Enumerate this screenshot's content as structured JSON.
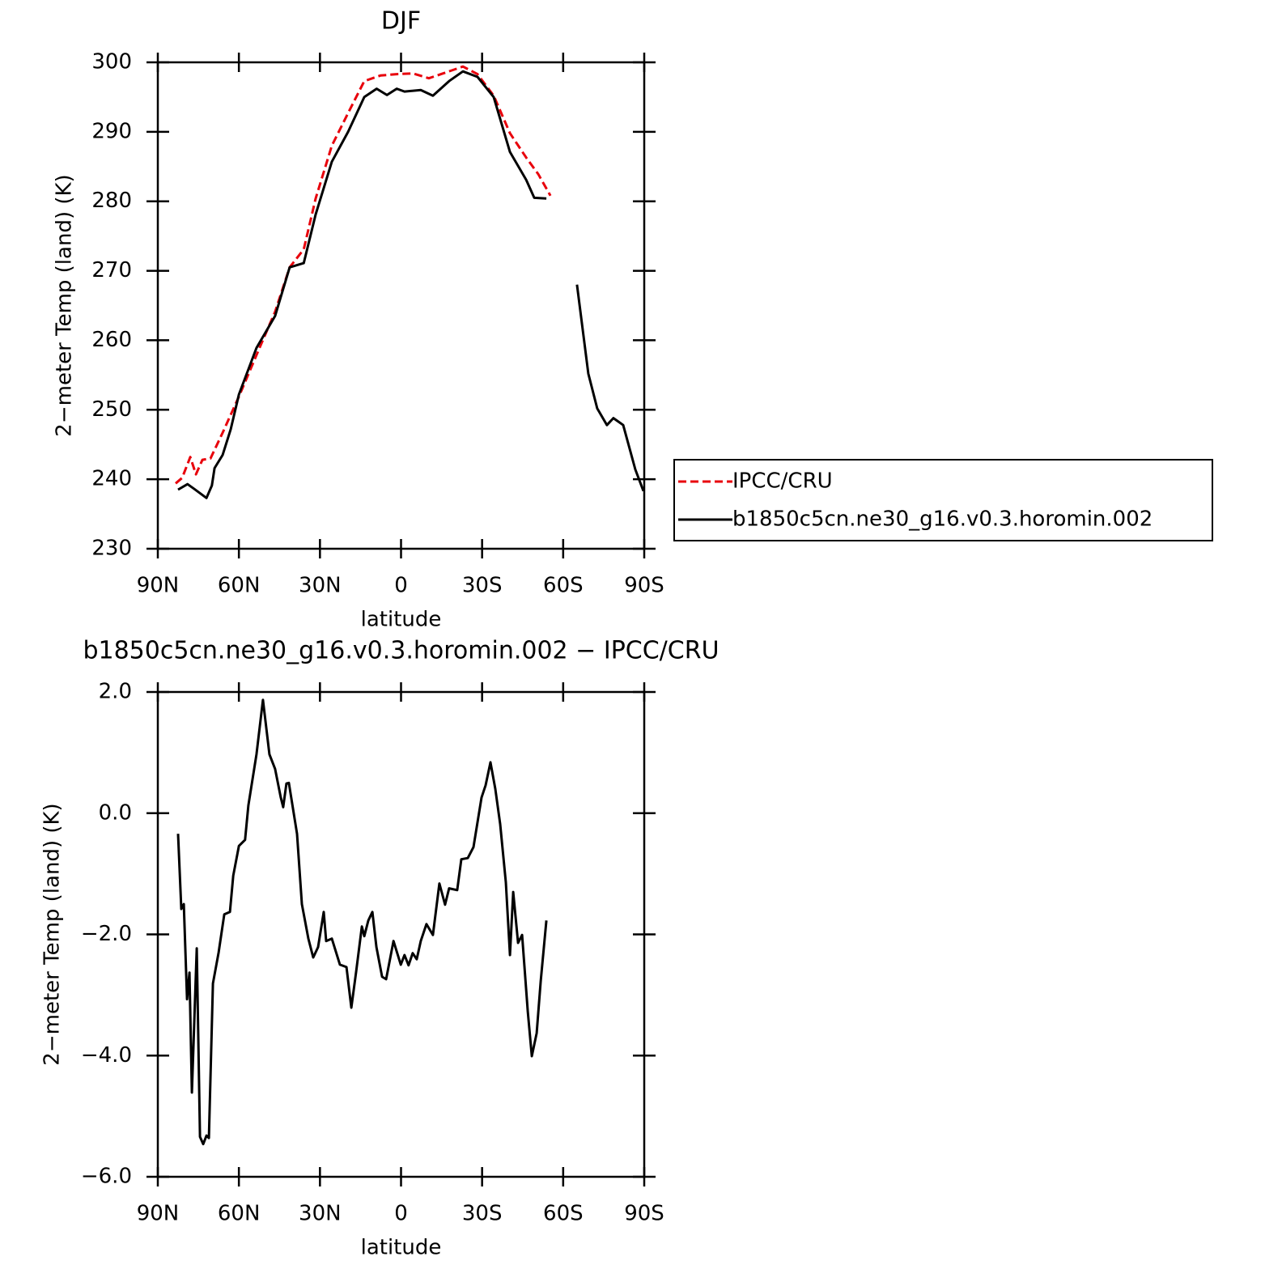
{
  "chart_data": [
    {
      "type": "line",
      "title": "DJF",
      "xlabel": "latitude",
      "ylabel": "2−meter Temp (land) (K)",
      "xlim": [
        90,
        -90
      ],
      "xticks": [
        {
          "value": 90,
          "label": "90N"
        },
        {
          "value": 60,
          "label": "60N"
        },
        {
          "value": 30,
          "label": "30N"
        },
        0,
        {
          "value": -30,
          "label": "30S"
        },
        {
          "value": -60,
          "label": "60S"
        },
        {
          "value": -90,
          "label": "90S"
        }
      ],
      "ylim": [
        230,
        300
      ],
      "yticks": [
        230,
        240,
        250,
        260,
        270,
        280,
        290,
        300
      ],
      "legend": "right",
      "series": [
        {
          "name": "IPCC/CRU",
          "color": "#e8000b",
          "dash": true,
          "x": [
            83.4,
            81,
            78,
            75.9,
            73.5,
            70.5,
            66,
            60,
            52.6,
            46.6,
            41.2,
            36,
            31.6,
            25.6,
            19.6,
            13.6,
            7.6,
            1.6,
            -4.3,
            -10.3,
            -14.8,
            -22.9,
            -28.3,
            -34.3,
            -40.3,
            -46.3,
            -50.8,
            -55.3
          ],
          "values": [
            239.4,
            240.2,
            243.2,
            240.7,
            242.8,
            243,
            246.7,
            251.9,
            258.7,
            264.1,
            270.5,
            273.1,
            280.4,
            288,
            292.7,
            297.3,
            298.1,
            298.3,
            298.4,
            297.7,
            298.3,
            299.4,
            298.3,
            295.2,
            289.8,
            286.3,
            283.9,
            280.8
          ]
        },
        {
          "name": "b1850c5cn.ne30_g16.v0.3.horomin.002",
          "color": "#000000",
          "dash": false,
          "x": [
            82.5,
            79,
            76.5,
            72,
            70,
            69,
            66,
            63,
            60,
            53.5,
            46.6,
            41.2,
            36,
            31.6,
            25.6,
            19.6,
            13.6,
            9,
            5.2,
            1.6,
            -1.3,
            -7.3,
            -11.8,
            -17.8,
            -22.9,
            -28.3,
            -34.3,
            -40.3,
            -46.3,
            -49.3,
            -53.8,
            -60,
            -65.1,
            -69.3,
            -72.6,
            -76.2,
            -78.6,
            -82.2,
            -86.7,
            -89.7
          ],
          "values": [
            238.5,
            239.3,
            238.6,
            237.3,
            239.1,
            241.6,
            243.5,
            247.2,
            252.2,
            258.9,
            263.5,
            270.5,
            271.1,
            278.1,
            285.7,
            290,
            295,
            296.2,
            295.3,
            296.2,
            295.8,
            296,
            295.2,
            297.3,
            298.7,
            297.9,
            295,
            287.1,
            283.1,
            280.5,
            280.4,
            null,
            268,
            255.2,
            250.2,
            247.8,
            248.8,
            247.8,
            241.4,
            238.3
          ]
        }
      ]
    },
    {
      "type": "line",
      "title": "b1850c5cn.ne30_g16.v0.3.horomin.002 − IPCC/CRU",
      "xlabel": "latitude",
      "ylabel": "2−meter Temp (land) (K)",
      "xlim": [
        90,
        -90
      ],
      "xticks": [
        {
          "value": 90,
          "label": "90N"
        },
        {
          "value": 60,
          "label": "60N"
        },
        {
          "value": 30,
          "label": "30N"
        },
        0,
        {
          "value": -30,
          "label": "30S"
        },
        {
          "value": -60,
          "label": "60S"
        },
        {
          "value": -90,
          "label": "90S"
        }
      ],
      "ylim": [
        -6,
        2
      ],
      "yticks": [
        {
          "value": -6,
          "label": "−6.0"
        },
        {
          "value": -4,
          "label": "−4.0"
        },
        {
          "value": -2,
          "label": "−2.0"
        },
        {
          "value": 0,
          "label": "0.0"
        },
        {
          "value": 2,
          "label": "2.0"
        }
      ],
      "color": "#000000",
      "x": [
        82.5,
        81.3,
        80.4,
        79.2,
        78.3,
        77.4,
        75.6,
        74.4,
        73.2,
        72,
        71.1,
        69.6,
        67.5,
        65.4,
        63.3,
        62.1,
        60,
        57.7,
        56.5,
        53.5,
        51.1,
        48.7,
        46.6,
        44.5,
        43.6,
        42.4,
        41.5,
        38.5,
        36.7,
        34.3,
        32.5,
        30.7,
        28.6,
        27.7,
        25.6,
        22.6,
        20.2,
        18.4,
        16.6,
        14.5,
        13.6,
        12.1,
        10.6,
        9.1,
        7,
        5.5,
        2.8,
        0.1,
        -1.3,
        -2.8,
        -4.3,
        -5.8,
        -7.3,
        -9.4,
        -11.8,
        -14.2,
        -16.3,
        -17.8,
        -20.8,
        -22.3,
        -24.7,
        -26.8,
        -29.8,
        -31.3,
        -33.1,
        -34.9,
        -36.7,
        -38.8,
        -40.3,
        -41.5,
        -43.3,
        -44.8,
        -46.9,
        -48.4,
        -50.2,
        -51.7,
        -53.8
      ],
      "values": [
        -0.34,
        -1.58,
        -1.5,
        -3.07,
        -2.63,
        -4.61,
        -2.23,
        -5.34,
        -5.46,
        -5.32,
        -5.36,
        -2.81,
        -2.3,
        -1.67,
        -1.63,
        -1.03,
        -0.54,
        -0.44,
        0.13,
        0.97,
        1.87,
        0.97,
        0.73,
        0.26,
        0.1,
        0.49,
        0.5,
        -0.34,
        -1.5,
        -2.07,
        -2.38,
        -2.21,
        -1.63,
        -2.11,
        -2.07,
        -2.5,
        -2.54,
        -3.21,
        -2.61,
        -1.87,
        -2.03,
        -1.77,
        -1.63,
        -2.21,
        -2.7,
        -2.74,
        -2.11,
        -2.5,
        -2.34,
        -2.51,
        -2.31,
        -2.41,
        -2.11,
        -1.83,
        -2.01,
        -1.16,
        -1.51,
        -1.24,
        -1.27,
        -0.76,
        -0.74,
        -0.56,
        0.26,
        0.46,
        0.84,
        0.4,
        -0.18,
        -1.14,
        -2.34,
        -1.3,
        -2.14,
        -2.01,
        -3.27,
        -4.01,
        -3.63,
        -2.77,
        -1.77
      ]
    }
  ]
}
